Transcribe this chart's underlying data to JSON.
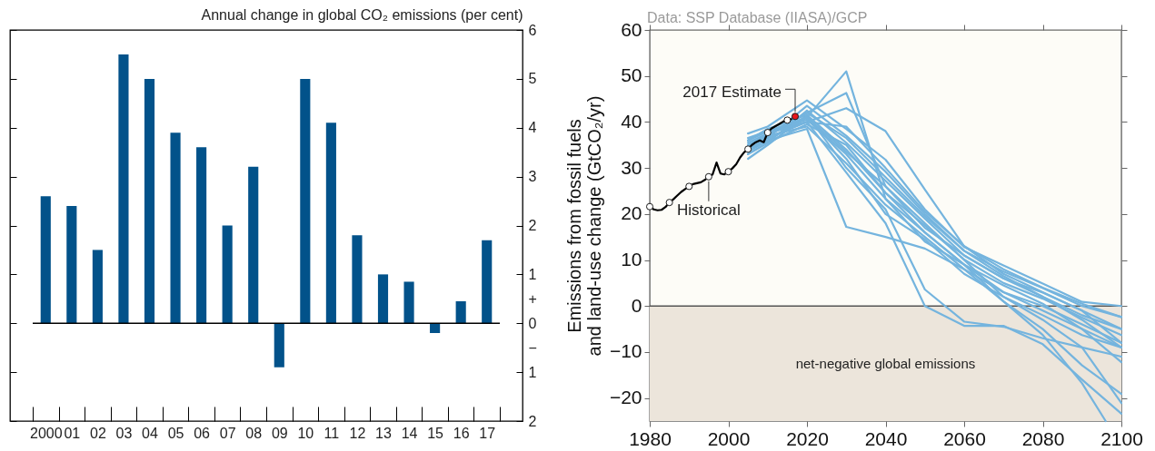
{
  "chart_data": [
    {
      "type": "bar",
      "ylabel": "Annual change in global CO₂ emissions (per cent)",
      "categories": [
        "2000",
        "01",
        "02",
        "03",
        "04",
        "05",
        "06",
        "07",
        "08",
        "09",
        "10",
        "11",
        "12",
        "13",
        "14",
        "15",
        "16",
        "17"
      ],
      "values": [
        2.6,
        2.4,
        1.5,
        5.5,
        5.0,
        3.9,
        3.6,
        2.0,
        3.2,
        -0.9,
        5.0,
        4.1,
        1.8,
        1.0,
        0.85,
        -0.2,
        0.45,
        1.7
      ],
      "color": "#02528a",
      "ylim": [
        -2,
        6
      ],
      "yticks": [
        {
          "value": -2,
          "label": "2"
        },
        {
          "value": -1,
          "label": "1"
        },
        {
          "value": -0.5,
          "label": "−"
        },
        0,
        {
          "value": 0.5,
          "label": "+"
        },
        1,
        2,
        3,
        4,
        5,
        6
      ],
      "ref_lines": [
        {
          "axis": "y",
          "value": 0,
          "color": "#000000"
        }
      ]
    },
    {
      "type": "line",
      "ylabel": "Emissions from fossil fuels\nand land-use change (GtCO₂/yr)",
      "xlim": [
        1980,
        2100
      ],
      "ylim": [
        -25,
        60
      ],
      "xticks": [
        1980,
        2000,
        2020,
        2040,
        2060,
        2080,
        2100
      ],
      "yticks": [
        -20,
        -10,
        0,
        10,
        20,
        30,
        40,
        50,
        60
      ],
      "bands": [
        {
          "axis": "y",
          "from": -25,
          "to": 0,
          "label": "net-negative global emissions",
          "color": "#ece5db"
        }
      ],
      "ref_lines": [
        {
          "axis": "y",
          "value": 0,
          "color": "#555555"
        }
      ],
      "x": [
        2005,
        2010,
        2020,
        2030,
        2040,
        2050,
        2060,
        2070,
        2080,
        2090,
        2100
      ],
      "series": [
        {
          "type": "line",
          "color": "#74b4de",
          "values": [
            35.5,
            37.5,
            41.0,
            51.0,
            23.3,
            14.0,
            9.0,
            4.5,
            0.5,
            -5.0,
            -12.2
          ]
        },
        {
          "type": "line",
          "color": "#74b4de",
          "values": [
            35.0,
            37.0,
            42.0,
            46.3,
            26.0,
            17.0,
            11.0,
            6.0,
            2.0,
            -3.0,
            -9.0
          ]
        },
        {
          "type": "line",
          "color": "#74b4de",
          "values": [
            36.0,
            38.0,
            40.0,
            43.0,
            38.0,
            25.3,
            13.0,
            7.0,
            3.0,
            -1.0,
            -8.0
          ]
        },
        {
          "type": "line",
          "color": "#74b4de",
          "values": [
            37.5,
            39.0,
            44.7,
            38.5,
            31.8,
            21.0,
            12.8,
            8.8,
            4.9,
            0.9,
            0.0
          ]
        },
        {
          "type": "line",
          "color": "#74b4de",
          "values": [
            34.0,
            36.5,
            43.5,
            37.0,
            29.2,
            20.0,
            12.0,
            7.5,
            3.9,
            0.0,
            -2.4
          ]
        },
        {
          "type": "line",
          "color": "#74b4de",
          "values": [
            33.0,
            35.5,
            42.5,
            35.5,
            27.2,
            19.0,
            11.0,
            6.0,
            2.9,
            -1.0,
            -5.0
          ]
        },
        {
          "type": "line",
          "color": "#74b4de",
          "values": [
            32.0,
            35.0,
            41.5,
            34.0,
            24.6,
            17.5,
            10.1,
            5.0,
            1.6,
            -2.5,
            -6.3
          ]
        },
        {
          "type": "line",
          "color": "#74b4de",
          "values": [
            36.5,
            38.0,
            40.5,
            33.0,
            23.3,
            16.0,
            9.0,
            3.0,
            0.0,
            -4.0,
            -8.0
          ]
        },
        {
          "type": "line",
          "color": "#74b4de",
          "values": [
            34.5,
            37.0,
            39.0,
            31.0,
            22.0,
            15.0,
            8.0,
            1.0,
            -5.0,
            -12.9,
            -19.1
          ]
        },
        {
          "type": "line",
          "color": "#74b4de",
          "values": [
            33.5,
            36.0,
            38.5,
            17.2,
            15.0,
            12.5,
            8.0,
            3.0,
            -1.0,
            -5.0,
            -9.0
          ]
        },
        {
          "type": "line",
          "color": "#74b4de",
          "values": [
            35.0,
            37.5,
            40.0,
            29.0,
            18.0,
            0.0,
            -4.3,
            -4.3,
            -8.3,
            -16.0,
            -23.4
          ]
        },
        {
          "type": "line",
          "color": "#74b4de",
          "values": [
            36.0,
            38.5,
            41.5,
            30.0,
            21.0,
            3.6,
            -3.4,
            -4.5,
            -7.0,
            -9.0,
            -11.0
          ]
        },
        {
          "type": "line",
          "color": "#74b4de",
          "values": [
            34.0,
            36.0,
            41.0,
            32.0,
            20.0,
            14.5,
            7.0,
            2.0,
            -2.0,
            -6.3,
            -9.0
          ]
        },
        {
          "type": "line",
          "color": "#74b4de",
          "x": [
            2005,
            2010,
            2020,
            2030,
            2040,
            2050,
            2060,
            2070,
            2080,
            2090,
            2096
          ],
          "values": [
            33.0,
            35.5,
            39.5,
            35.0,
            24.6,
            16.0,
            9.0,
            1.0,
            -6.3,
            -16.8,
            -25.0
          ]
        },
        {
          "type": "line",
          "color": "#74b4de",
          "values": [
            35.0,
            37.0,
            42.0,
            36.5,
            28.0,
            19.5,
            12.0,
            6.5,
            2.0,
            -2.0,
            -5.0
          ]
        },
        {
          "type": "line",
          "color": "#74b4de",
          "values": [
            34.0,
            36.5,
            40.0,
            39.0,
            30.0,
            20.5,
            13.0,
            8.0,
            4.0,
            0.5,
            -2.4
          ]
        },
        {
          "type": "line",
          "color": "#74b4de",
          "values": [
            36.0,
            38.0,
            41.0,
            33.5,
            26.0,
            18.0,
            10.0,
            2.0,
            -3.0,
            -9.0,
            -21.1
          ]
        },
        {
          "type": "line",
          "color": "#000000",
          "x": [
            1980,
            1981,
            1982,
            1983,
            1984,
            1985,
            1986,
            1987,
            1988,
            1989,
            1990,
            1991,
            1992,
            1993,
            1994,
            1995,
            1996,
            1997,
            1998,
            1999,
            2000,
            2001,
            2002,
            2003,
            2004,
            2005,
            2006,
            2007,
            2008,
            2009,
            2010,
            2011,
            2012,
            2013,
            2014,
            2015,
            2016
          ],
          "values": [
            21.6,
            21.0,
            20.8,
            20.9,
            21.5,
            22.5,
            23.2,
            24.0,
            24.8,
            25.4,
            26.0,
            26.5,
            26.7,
            26.9,
            27.4,
            28.1,
            28.6,
            31.2,
            28.8,
            28.6,
            29.2,
            29.9,
            30.8,
            32.3,
            33.4,
            34.1,
            35.0,
            35.6,
            36.0,
            35.6,
            37.7,
            38.6,
            39.1,
            39.6,
            40.1,
            40.4,
            40.6
          ]
        },
        {
          "type": "scatter",
          "color": "#ffffff",
          "x": [
            1980,
            1985,
            1990,
            1995,
            2000,
            2005,
            2010,
            2015
          ],
          "values": [
            21.6,
            22.5,
            26.0,
            28.1,
            29.2,
            34.1,
            37.7,
            40.4
          ]
        },
        {
          "type": "scatter",
          "color": "#e8161b",
          "x": [
            2017
          ],
          "values": [
            41.2
          ]
        }
      ],
      "annotations": [
        "Data: SSP Database (IIASA)/GCP",
        {
          "text": "2017 Estimate",
          "x": 2017,
          "y": 41.2
        },
        {
          "text": "Historical",
          "x": 1995,
          "y": 28.1
        }
      ]
    }
  ]
}
